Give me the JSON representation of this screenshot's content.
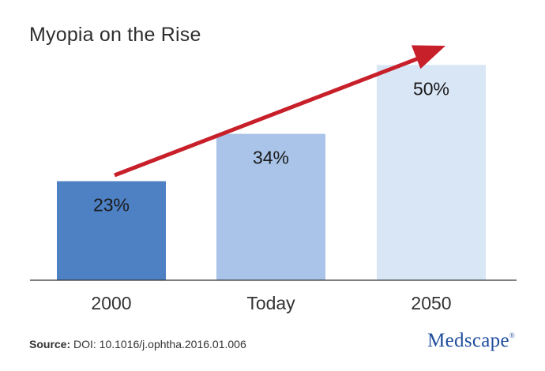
{
  "chart_data": {
    "type": "bar",
    "title": "Myopia on the Rise",
    "categories": [
      "2000",
      "Today",
      "2050"
    ],
    "values": [
      23,
      34,
      50
    ],
    "value_labels": [
      "23%",
      "34%",
      "50%"
    ],
    "bar_colors": [
      "#4e80c4",
      "#a9c4e8",
      "#d8e6f6"
    ],
    "arrow_color": "#c8202a",
    "ylim": [
      0,
      55
    ],
    "grid": false,
    "xlabel": "",
    "ylabel": ""
  },
  "source": {
    "label": "Source:",
    "text": " DOI: 10.1016/j.ophtha.2016.01.006"
  },
  "logo": {
    "text": "Medscape",
    "mark": "®"
  }
}
